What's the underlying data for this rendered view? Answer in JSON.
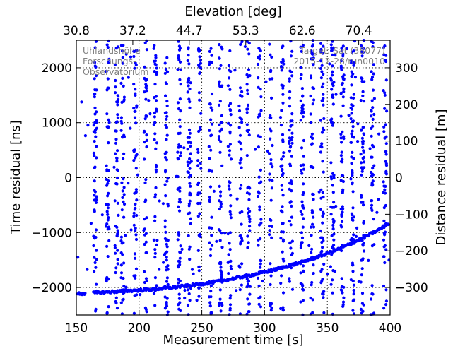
{
  "chart_data": {
    "type": "scatter",
    "xlabel": "Measurement time [s]",
    "ylabel": "Time residual [ns]",
    "top_xlabel": "Elevation [deg]",
    "right_ylabel": "Distance residual [m]",
    "xlim": [
      150,
      400
    ],
    "ylim": [
      -2500,
      2500
    ],
    "right_ylim": [
      -375,
      375
    ],
    "grid": true,
    "x_ticks": [
      150,
      200,
      250,
      300,
      350,
      400
    ],
    "x_tick_labels": [
      "150",
      "200",
      "250",
      "300",
      "350",
      "400"
    ],
    "y_ticks": [
      -2000,
      -1000,
      0,
      1000,
      2000
    ],
    "y_tick_labels": [
      "−2000",
      "−1000",
      "0",
      "1000",
      "2000"
    ],
    "top_ticks": [
      150,
      195,
      240,
      285,
      330,
      375,
      400
    ],
    "top_tick_labels": [
      "30.8",
      "37.2",
      "44.7",
      "53.3",
      "62.6",
      "70.4"
    ],
    "right_ticks": [
      -300,
      -200,
      -100,
      0,
      100,
      200,
      300
    ],
    "right_tick_labels": [
      "−300",
      "−200",
      "−100",
      "0",
      "100",
      "200",
      "300"
    ],
    "annotations": {
      "left": [
        "Uhlandshöhe",
        "Forschungs-",
        "Observatorium"
      ],
      "right": [
        "Target: Sat (38077)",
        "2015-12-28/run0010"
      ]
    },
    "series": [
      {
        "color": "#0000ff",
        "track": {
          "x": [
            150,
            160,
            170,
            180,
            190,
            200,
            210,
            220,
            230,
            240,
            250,
            260,
            270,
            280,
            290,
            300,
            310,
            320,
            330,
            340,
            350,
            360,
            370,
            380,
            390,
            400
          ],
          "y": [
            -2110,
            -2105,
            -2090,
            -2075,
            -2060,
            -2050,
            -2035,
            -2015,
            -1990,
            -1965,
            -1935,
            -1900,
            -1860,
            -1815,
            -1770,
            -1720,
            -1665,
            -1600,
            -1535,
            -1460,
            -1380,
            -1290,
            -1190,
            -1080,
            -960,
            -820
          ]
        },
        "noise_columns_x": [
          165,
          175,
          182,
          187,
          197,
          205,
          213,
          222,
          232,
          240,
          248,
          257,
          265,
          272,
          281,
          287,
          296,
          305,
          314,
          321,
          330,
          338,
          346,
          354,
          362,
          370,
          378,
          386,
          396
        ]
      }
    ]
  }
}
